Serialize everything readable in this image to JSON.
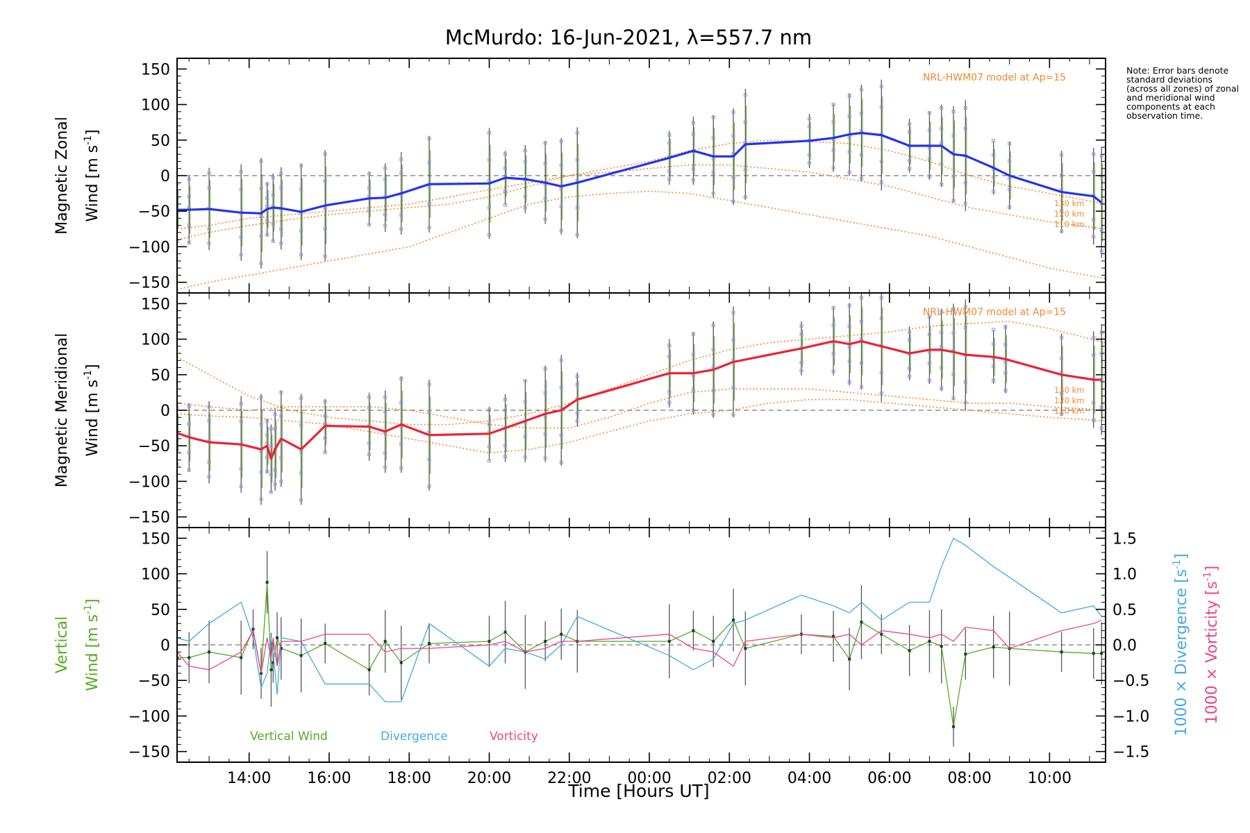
{
  "chart_data": {
    "type": "line",
    "title": "McMurdo: 16-Jun-2021, λ=557.7 nm",
    "xlabel": "Time [Hours UT]",
    "xlim": [
      12.2,
      35.4
    ],
    "x_ticks": [
      14,
      16,
      18,
      20,
      22,
      24,
      26,
      28,
      30,
      32,
      34
    ],
    "x_tick_labels": [
      "14:00",
      "16:00",
      "18:00",
      "20:00",
      "22:00",
      "00:00",
      "02:00",
      "04:00",
      "06:00",
      "08:00",
      "10:00"
    ],
    "y_ticks": [
      150,
      100,
      50,
      0,
      -50,
      -100,
      -150
    ],
    "y_tick_labels": [
      "150",
      "100",
      "50",
      "0",
      "−50",
      "−100",
      "−150"
    ],
    "ylim": [
      -165,
      165
    ],
    "right_ticks": [
      1.5,
      1.0,
      0.5,
      0.0,
      -0.5,
      -1.0,
      -1.5
    ],
    "right_tick_labels": [
      "1.5",
      "1.0",
      "0.5",
      "0.0",
      "−0.5",
      "−1.0",
      "−1.5"
    ],
    "right_ylim": [
      -1.65,
      1.65
    ],
    "model_label": "NRL-HWM07 model at Ap=15",
    "altitude_labels": [
      "130 km",
      "120 km",
      "110 km"
    ],
    "note": "Note: Error bars denote standard deviations (across all zones) of zonal and meridional wind components at each observation time.",
    "legend": [
      "Vertical Wind",
      "Divergence",
      "Vorticity"
    ],
    "colors": {
      "zonal": "#2233ee",
      "meridional": "#ee2233",
      "vertical": "#55aa22",
      "divergence": "#44aadd",
      "vorticity": "#ee4488",
      "model": "#ee8833",
      "scatter": "#9999dd",
      "errorbar": "#555555"
    },
    "panels": [
      {
        "id": "zonal",
        "ylabel_line1": "Magnetic Zonal",
        "ylabel_line2": "Wind [m s",
        "ylabel_sup": "-1",
        "ylabel_end": "]",
        "series": [
          {
            "name": "Magnetic Zonal Wind",
            "x": [
              12.2,
              12.5,
              13.0,
              13.8,
              14.3,
              14.45,
              14.6,
              14.8,
              15.3,
              15.9,
              17.0,
              17.4,
              17.8,
              18.5,
              20.0,
              20.4,
              20.9,
              21.4,
              21.8,
              22.2,
              24.5,
              25.1,
              25.6,
              26.1,
              26.4,
              28.0,
              28.6,
              29.0,
              29.3,
              29.8,
              30.5,
              31.0,
              31.3,
              31.6,
              31.9,
              32.6,
              33.0,
              34.3,
              35.1,
              35.3
            ],
            "y": [
              -48,
              -48,
              -47,
              -52,
              -53,
              -47,
              -45,
              -46,
              -51,
              -42,
              -32,
              -31,
              -25,
              -12,
              -11,
              -3,
              -5,
              -10,
              -15,
              -10,
              25,
              35,
              27,
              27,
              44,
              49,
              53,
              58,
              60,
              57,
              42,
              42,
              42,
              30,
              28,
              11,
              0,
              -23,
              -29,
              -38
            ]
          }
        ],
        "models": [
          {
            "name": "130 km",
            "x": [
              12.2,
              13.0,
              14.0,
              15.0,
              16.0,
              17.0,
              18.0,
              19.0,
              20.0,
              21.0,
              22.0,
              23.0,
              24.0,
              25.0,
              26.0,
              27.0,
              28.0,
              29.0,
              30.0,
              31.0,
              32.0,
              33.0,
              34.0,
              35.4
            ],
            "y": [
              -75,
              -70,
              -60,
              -55,
              -50,
              -45,
              -40,
              -30,
              -20,
              -10,
              0,
              10,
              20,
              35,
              45,
              50,
              48,
              45,
              35,
              20,
              0,
              -15,
              -25,
              -40
            ]
          },
          {
            "name": "120 km",
            "x": [
              12.2,
              13.0,
              14.0,
              15.0,
              16.0,
              17.0,
              18.0,
              19.0,
              20.0,
              21.0,
              22.0,
              23.0,
              24.0,
              25.0,
              26.0,
              27.0,
              28.0,
              29.0,
              30.0,
              31.0,
              32.0,
              33.0,
              34.0,
              35.4
            ],
            "y": [
              -90,
              -80,
              -70,
              -62,
              -55,
              -50,
              -45,
              -40,
              -30,
              -15,
              0,
              5,
              10,
              15,
              15,
              10,
              5,
              -5,
              -15,
              -30,
              -45,
              -55,
              -65,
              -75
            ]
          },
          {
            "name": "110 km",
            "x": [
              12.2,
              13.0,
              14.0,
              15.0,
              16.0,
              17.0,
              18.0,
              19.0,
              20.0,
              21.0,
              22.0,
              23.0,
              24.0,
              25.0,
              26.0,
              27.0,
              28.0,
              29.0,
              30.0,
              31.0,
              32.0,
              33.0,
              34.0,
              35.4
            ],
            "y": [
              -160,
              -150,
              -140,
              -130,
              -120,
              -110,
              -100,
              -80,
              -60,
              -40,
              -30,
              -25,
              -22,
              -25,
              -35,
              -45,
              -55,
              -65,
              -75,
              -85,
              -100,
              -115,
              -130,
              -145
            ]
          }
        ]
      },
      {
        "id": "meridional",
        "ylabel_line1": "Magnetic Meridional",
        "ylabel_line2": "Wind [m s",
        "ylabel_sup": "-1",
        "ylabel_end": "]",
        "series": [
          {
            "name": "Magnetic Meridional Wind",
            "x": [
              12.2,
              12.5,
              13.0,
              13.8,
              14.3,
              14.45,
              14.55,
              14.65,
              14.8,
              15.3,
              15.9,
              17.0,
              17.4,
              17.8,
              18.5,
              20.0,
              20.4,
              20.9,
              21.4,
              21.8,
              22.2,
              24.5,
              25.1,
              25.6,
              26.1,
              27.8,
              28.6,
              29.0,
              29.3,
              29.8,
              30.5,
              31.0,
              31.3,
              31.6,
              31.9,
              32.6,
              32.9,
              34.3,
              35.1,
              35.3
            ],
            "y": [
              -32,
              -38,
              -45,
              -48,
              -55,
              -50,
              -68,
              -55,
              -40,
              -55,
              -22,
              -23,
              -30,
              -20,
              -35,
              -33,
              -25,
              -15,
              -5,
              0,
              15,
              52,
              52,
              57,
              68,
              87,
              97,
              93,
              97,
              90,
              80,
              85,
              85,
              82,
              78,
              75,
              72,
              50,
              43,
              43
            ]
          }
        ],
        "models": [
          {
            "name": "130 km",
            "x": [
              12.2,
              13.0,
              14.0,
              15.0,
              16.0,
              17.0,
              18.0,
              19.0,
              20.0,
              21.0,
              22.0,
              23.0,
              24.0,
              25.0,
              26.0,
              27.0,
              28.0,
              29.0,
              30.0,
              31.0,
              32.0,
              33.0,
              34.0,
              35.4
            ],
            "y": [
              75,
              50,
              20,
              0,
              -10,
              -15,
              -20,
              -20,
              -15,
              -5,
              10,
              30,
              50,
              70,
              85,
              95,
              100,
              105,
              110,
              118,
              122,
              125,
              115,
              95
            ]
          },
          {
            "name": "120 km",
            "x": [
              12.2,
              13.0,
              14.0,
              15.0,
              16.0,
              17.0,
              18.0,
              19.0,
              20.0,
              21.0,
              22.0,
              23.0,
              24.0,
              25.0,
              26.0,
              27.0,
              28.0,
              29.0,
              30.0,
              31.0,
              32.0,
              33.0,
              34.0,
              35.4
            ],
            "y": [
              10,
              5,
              0,
              5,
              5,
              5,
              0,
              -10,
              -20,
              -25,
              -25,
              -10,
              10,
              25,
              30,
              30,
              30,
              25,
              20,
              15,
              10,
              10,
              5,
              0
            ]
          },
          {
            "name": "110 km",
            "x": [
              12.2,
              13.0,
              14.0,
              15.0,
              16.0,
              17.0,
              18.0,
              19.0,
              20.0,
              21.0,
              22.0,
              23.0,
              24.0,
              25.0,
              26.0,
              27.0,
              28.0,
              29.0,
              30.0,
              31.0,
              32.0,
              33.0,
              34.0,
              35.4
            ],
            "y": [
              -5,
              -8,
              -10,
              -15,
              -20,
              -30,
              -40,
              -50,
              -60,
              -55,
              -45,
              -30,
              -15,
              -5,
              0,
              10,
              15,
              15,
              10,
              5,
              0,
              -5,
              -10,
              -15
            ]
          }
        ]
      },
      {
        "id": "vertical",
        "ylabel_line1": "Vertical",
        "ylabel_line2": "Wind [m s",
        "ylabel_sup": "-1",
        "ylabel_end": "]",
        "right_label_div": "1000 × Divergence [s",
        "right_label_vor": "1000 × Vorticity [s",
        "right_label_sup": "-1",
        "right_label_end": "]",
        "series": [
          {
            "name": "Vertical Wind",
            "x": [
              12.2,
              12.5,
              13.0,
              13.8,
              14.1,
              14.3,
              14.45,
              14.55,
              14.6,
              14.7,
              14.8,
              15.3,
              15.9,
              17.0,
              17.4,
              17.8,
              18.5,
              20.0,
              20.4,
              20.9,
              21.4,
              21.8,
              22.2,
              24.5,
              25.1,
              25.6,
              26.1,
              26.4,
              27.8,
              28.6,
              29.0,
              29.3,
              29.8,
              30.5,
              31.0,
              31.3,
              31.6,
              31.9,
              32.6,
              33.0,
              34.3,
              35.1,
              35.3
            ],
            "y": [
              -18,
              -18,
              -10,
              -18,
              22,
              -40,
              88,
              -35,
              -25,
              10,
              -5,
              -15,
              2,
              -35,
              5,
              -25,
              2,
              5,
              18,
              -10,
              5,
              15,
              5,
              5,
              20,
              5,
              35,
              -5,
              15,
              12,
              -20,
              32,
              15,
              -8,
              5,
              -2,
              -115,
              -13,
              -3,
              -5,
              -10,
              -12,
              -12
            ]
          },
          {
            "name": "Divergence",
            "axis": "right",
            "x": [
              12.2,
              12.5,
              13.0,
              13.8,
              14.1,
              14.3,
              14.45,
              14.55,
              14.6,
              14.7,
              14.8,
              15.3,
              15.9,
              17.0,
              17.4,
              17.8,
              18.5,
              20.0,
              20.4,
              20.9,
              21.4,
              21.8,
              22.2,
              24.5,
              25.1,
              25.6,
              26.1,
              26.4,
              27.8,
              28.6,
              29.0,
              29.3,
              29.8,
              30.5,
              31.0,
              31.3,
              31.6,
              31.9,
              32.6,
              33.0,
              34.3,
              35.1,
              35.3
            ],
            "y": [
              0.1,
              0.05,
              0.3,
              0.6,
              0.1,
              -0.6,
              -0.4,
              0.1,
              -0.1,
              -0.7,
              0.1,
              0.05,
              -0.55,
              -0.55,
              -0.8,
              -0.8,
              0.3,
              -0.3,
              -0.05,
              -0.1,
              -0.2,
              0.0,
              0.4,
              -0.15,
              -0.35,
              -0.2,
              0.3,
              0.35,
              0.7,
              0.55,
              0.45,
              0.6,
              0.35,
              0.6,
              0.6,
              1.1,
              1.5,
              1.4,
              1.1,
              0.95,
              0.45,
              0.55,
              0.4
            ]
          },
          {
            "name": "Vorticity",
            "axis": "right",
            "x": [
              12.2,
              12.5,
              13.0,
              13.8,
              14.1,
              14.3,
              14.45,
              14.55,
              14.6,
              14.7,
              14.8,
              15.3,
              15.9,
              17.0,
              17.4,
              17.8,
              18.5,
              20.0,
              20.4,
              20.9,
              21.4,
              21.8,
              22.2,
              24.5,
              25.1,
              25.6,
              26.1,
              26.4,
              27.8,
              28.6,
              29.0,
              29.3,
              29.8,
              30.5,
              31.0,
              31.3,
              31.6,
              31.9,
              32.6,
              33.0,
              34.3,
              35.1,
              35.3
            ],
            "y": [
              -0.1,
              -0.3,
              -0.35,
              -0.1,
              0.2,
              -0.4,
              0.1,
              -0.2,
              0.1,
              -0.3,
              0.05,
              0.05,
              0.15,
              0.15,
              -0.1,
              -0.05,
              -0.05,
              0.0,
              0.05,
              -0.1,
              -0.05,
              0.05,
              0.05,
              0.15,
              -0.05,
              -0.1,
              -0.3,
              0.05,
              0.15,
              0.1,
              0.15,
              0.0,
              0.2,
              0.15,
              0.1,
              0.15,
              0.05,
              0.25,
              0.2,
              -0.05,
              0.2,
              0.3,
              0.35
            ]
          }
        ]
      }
    ]
  }
}
